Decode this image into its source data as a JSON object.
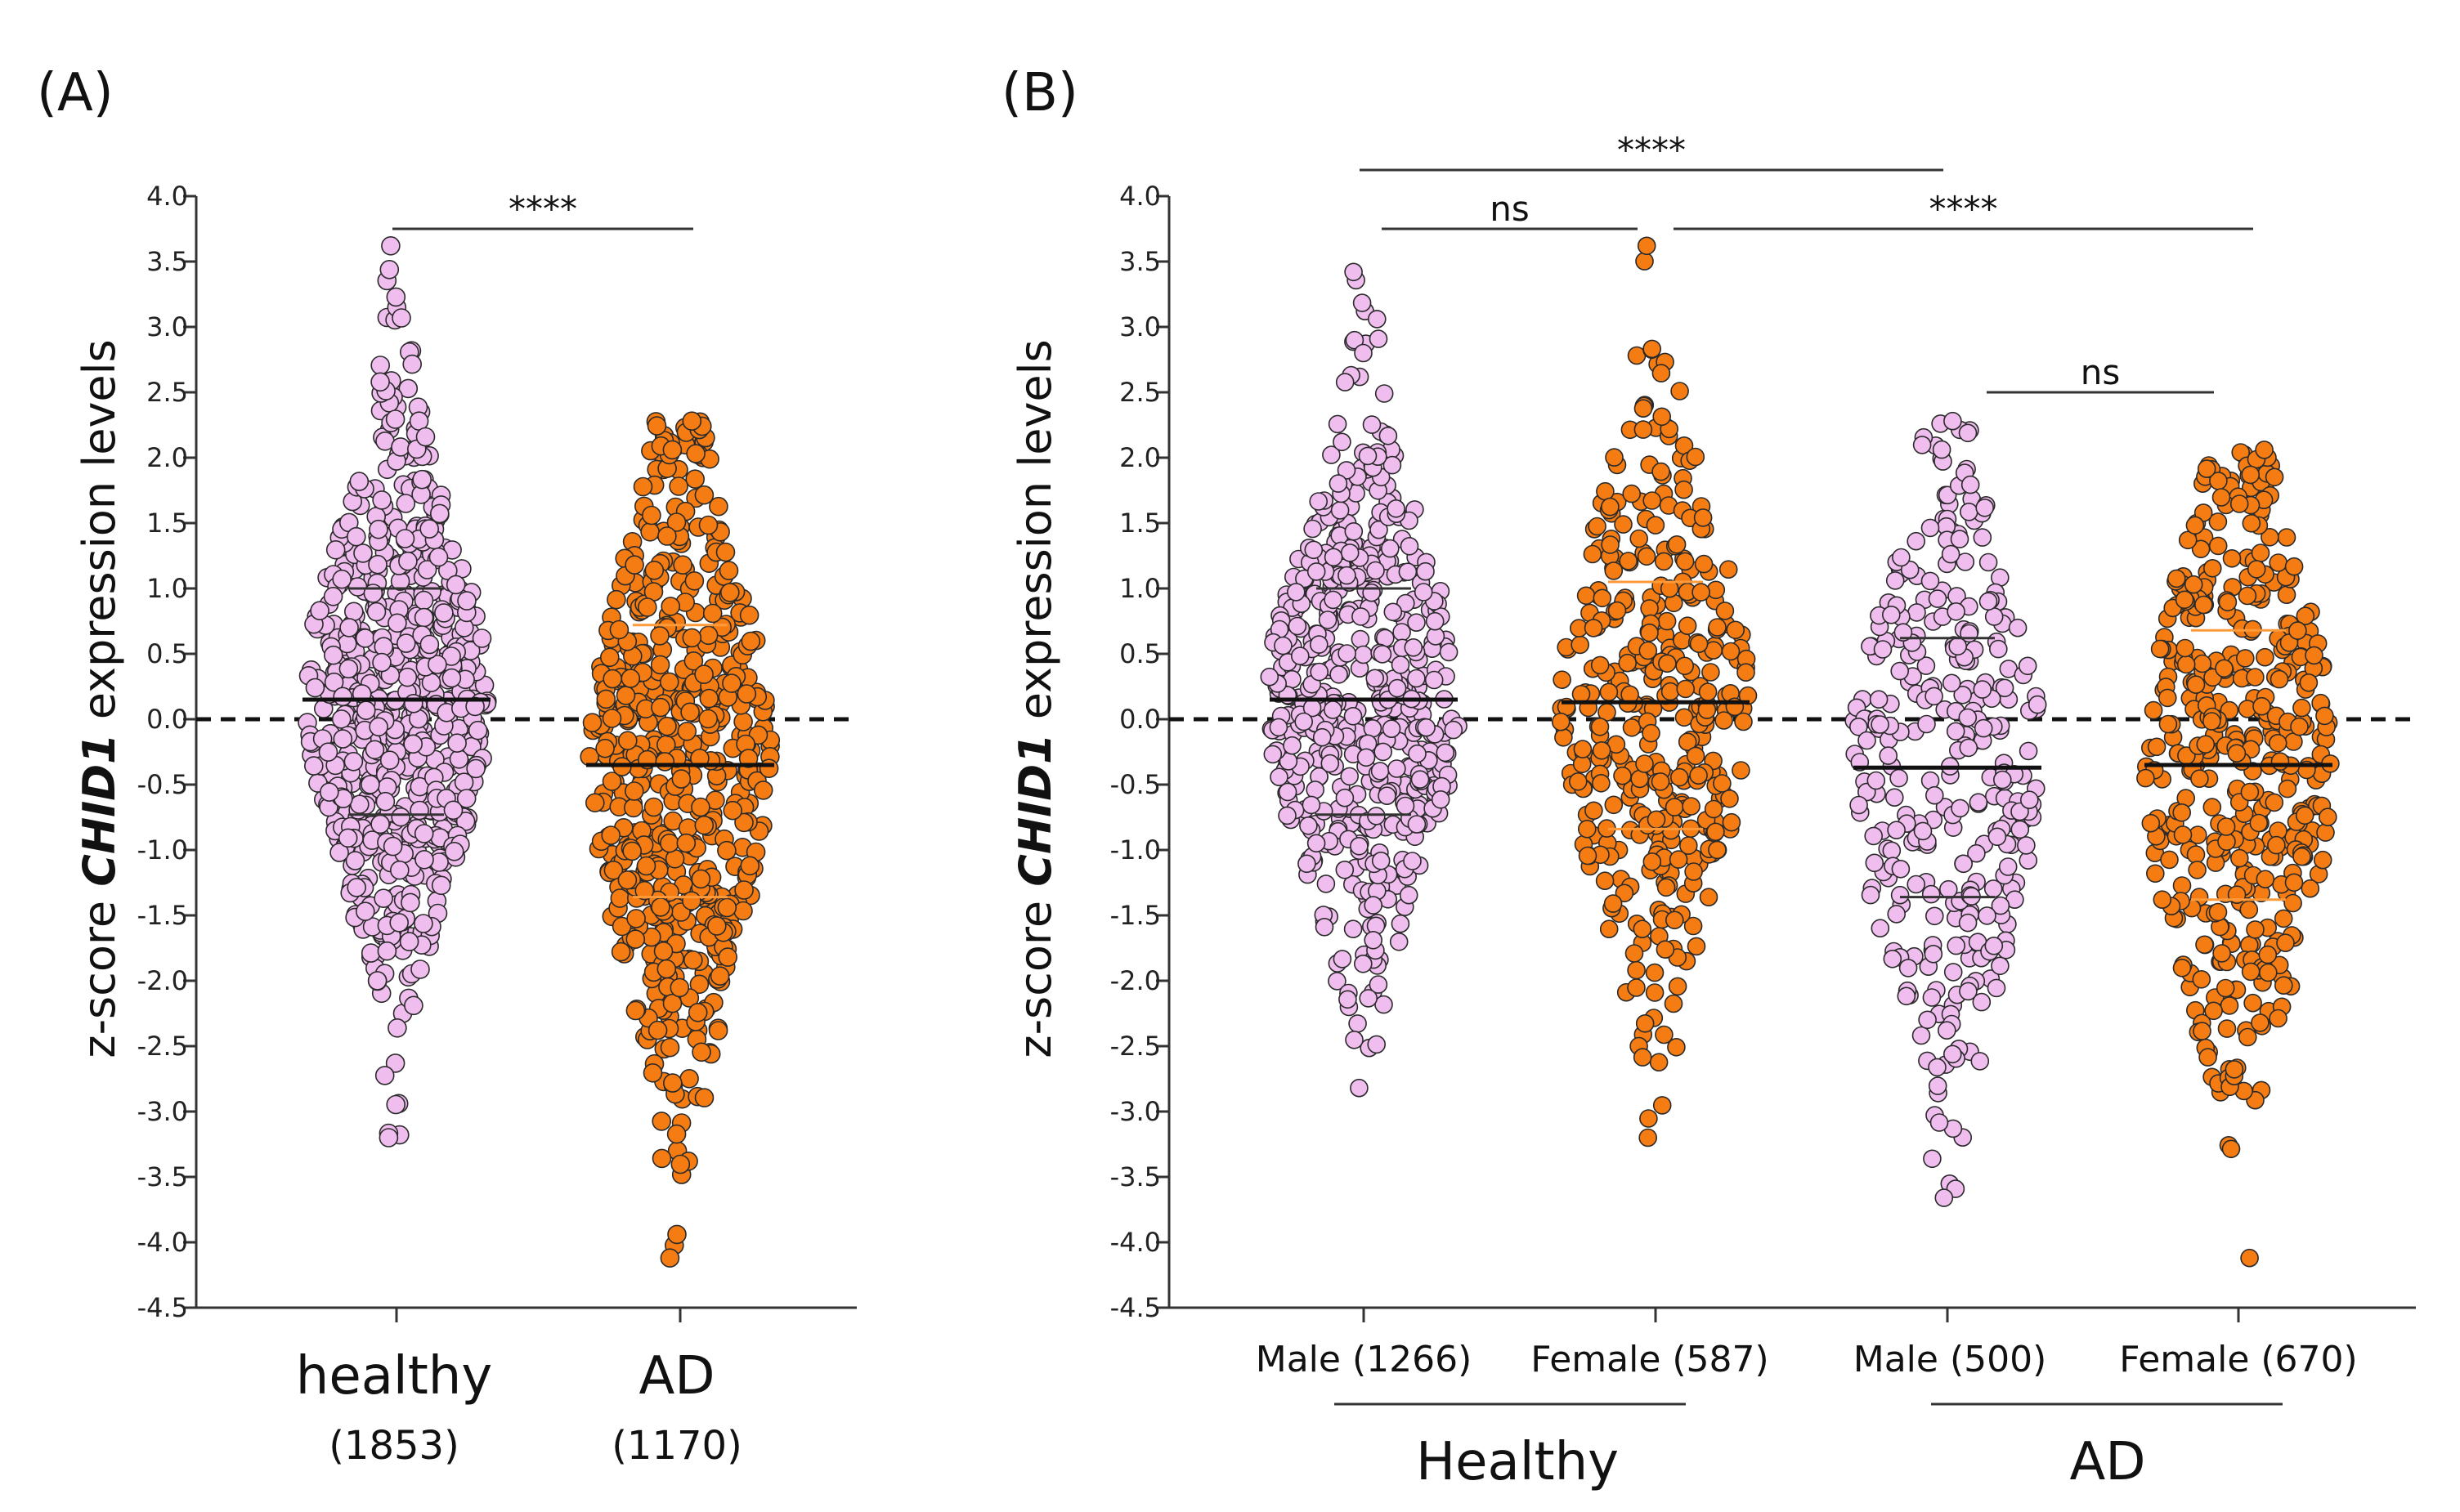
{
  "chart_data": [
    {
      "type": "scatter",
      "subtype": "beeswarm",
      "panel_label": "(A)",
      "ylabel_prefix": "z-score ",
      "ylabel_gene": "CHID1",
      "ylabel_suffix": " expression levels",
      "ylim": [
        -4.5,
        4.0
      ],
      "yticks": [
        "4.0",
        "3.5",
        "3.0",
        "2.5",
        "2.0",
        "1.5",
        "1.0",
        "0.5",
        "0.0",
        "-0.5",
        "-1.0",
        "-1.5",
        "-2.0",
        "-2.5",
        "-3.0",
        "-3.5",
        "-4.0",
        "-4.5"
      ],
      "reference_line": 0.0,
      "groups": [
        {
          "name": "healthy",
          "count_label": "(1853)",
          "n": 1853,
          "color": "#efbdee",
          "median": 0.15,
          "q1": -0.73,
          "q3": 1.0,
          "min": -3.2,
          "max": 3.62
        },
        {
          "name": "AD",
          "count_label": "(1170)",
          "n": 1170,
          "color": "#f57c12",
          "median": -0.35,
          "q1": -1.36,
          "q3": 0.72,
          "min": -4.12,
          "max": 2.28
        }
      ],
      "significance": [
        {
          "from": 0,
          "to": 1,
          "label": "****",
          "y": 3.75
        }
      ]
    },
    {
      "type": "scatter",
      "subtype": "beeswarm",
      "panel_label": "(B)",
      "ylabel_prefix": "z-score ",
      "ylabel_gene": "CHID1",
      "ylabel_suffix": " expression levels",
      "ylim": [
        -4.5,
        4.0
      ],
      "yticks": [
        "4.0",
        "3.5",
        "3.0",
        "2.5",
        "2.0",
        "1.5",
        "1.0",
        "0.5",
        "0.0",
        "-0.5",
        "-1.0",
        "-1.5",
        "-2.0",
        "-2.5",
        "-3.0",
        "-3.5",
        "-4.0",
        "-4.5"
      ],
      "reference_line": 0.0,
      "groups": [
        {
          "name": "Male (1266)",
          "n": 1266,
          "color": "#efbdee",
          "median": 0.15,
          "q1": -0.73,
          "q3": 1.0,
          "min": -2.82,
          "max": 3.42
        },
        {
          "name": "Female (587)",
          "n": 587,
          "color": "#f57c12",
          "median": 0.13,
          "q1": -0.84,
          "q3": 1.05,
          "min": -3.2,
          "max": 3.62
        },
        {
          "name": "Male (500)",
          "n": 500,
          "color": "#efbdee",
          "median": -0.37,
          "q1": -1.36,
          "q3": 0.62,
          "min": -3.66,
          "max": 2.28
        },
        {
          "name": "Female (670)",
          "n": 670,
          "color": "#f57c12",
          "median": -0.35,
          "q1": -1.38,
          "q3": 0.68,
          "min": -4.12,
          "max": 2.06
        }
      ],
      "group_labels": [
        {
          "label": "Healthy",
          "spans": [
            0,
            1
          ]
        },
        {
          "label": "AD",
          "spans": [
            2,
            3
          ]
        }
      ],
      "significance": [
        {
          "from": 0,
          "to": 2,
          "label": "****",
          "y": 4.2
        },
        {
          "from": 0,
          "to": 1,
          "label": "ns",
          "y": 3.75
        },
        {
          "from": 1,
          "to": 3,
          "label": "****",
          "y": 3.75
        },
        {
          "from": 2,
          "to": 3,
          "label": "ns",
          "y": 2.5
        }
      ]
    }
  ]
}
